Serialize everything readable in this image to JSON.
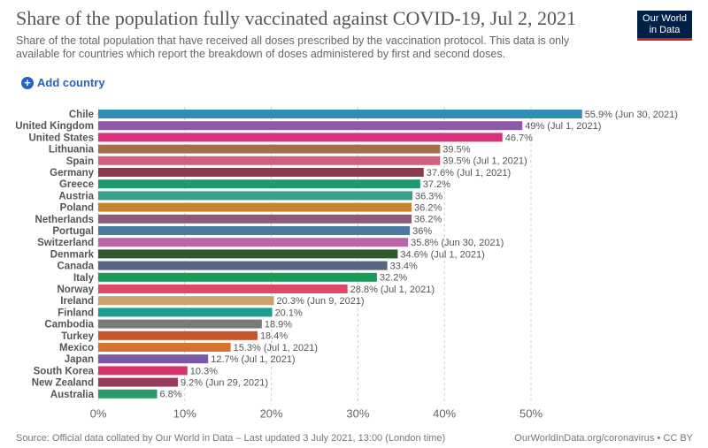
{
  "header": {
    "title": "Share of the population fully vaccinated against COVID-19, Jul 2, 2021",
    "subtitle": "Share of the total population that have received all doses prescribed by the vaccination protocol. This data is only available for countries which report the breakdown of doses administered by first and second doses.",
    "logo": [
      "Our World",
      "in Data"
    ],
    "button": "Add country"
  },
  "chart_data": {
    "type": "hbar",
    "categories": [
      "Chile",
      "United Kingdom",
      "United States",
      "Lithuania",
      "Spain",
      "Germany",
      "Greece",
      "Austria",
      "Poland",
      "Netherlands",
      "Portugal",
      "Switzerland",
      "Denmark",
      "Canada",
      "Italy",
      "Norway",
      "Ireland",
      "Finland",
      "Cambodia",
      "Turkey",
      "Mexico",
      "Japan",
      "South Korea",
      "New Zealand",
      "Australia"
    ],
    "values": [
      55.9,
      49,
      46.7,
      39.5,
      39.5,
      37.6,
      37.2,
      36.3,
      36.2,
      36.2,
      36,
      35.8,
      34.6,
      33.4,
      32.2,
      28.8,
      20.3,
      20.1,
      18.9,
      18.4,
      15.3,
      12.7,
      10.3,
      9.2,
      6.8
    ],
    "value_labels": [
      "55.9% (Jun 30, 2021)",
      "49% (Jul 1, 2021)",
      "46.7%",
      "39.5%",
      "39.5% (Jul 1, 2021)",
      "37.6% (Jul 1, 2021)",
      "37.2%",
      "36.3%",
      "36.2%",
      "36.2%",
      "36%",
      "35.8% (Jun 30, 2021)",
      "34.6% (Jul 1, 2021)",
      "33.4%",
      "32.2%",
      "28.8% (Jul 1, 2021)",
      "20.3% (Jun 9, 2021)",
      "20.1%",
      "18.9%",
      "18.4%",
      "15.3% (Jul 1, 2021)",
      "12.7% (Jul 1, 2021)",
      "10.3%",
      "9.2% (Jun 29, 2021)",
      "6.8%"
    ],
    "colors": [
      "#2f8fb2",
      "#8e5aa8",
      "#d6337a",
      "#a0704f",
      "#d06080",
      "#8d3a4e",
      "#1d9a6c",
      "#3aa089",
      "#c8832b",
      "#8e5a7a",
      "#4c7a9e",
      "#b866a8",
      "#2e5b2e",
      "#576580",
      "#1b9a5a",
      "#e0486a",
      "#c9a36e",
      "#1b9e8e",
      "#7a7a7a",
      "#c4552c",
      "#d4742e",
      "#7a5aa8",
      "#d8336a",
      "#9a3a5a",
      "#2a9a6a"
    ],
    "xlim": [
      0,
      57
    ],
    "xticks": [
      {
        "value": 0,
        "label": "0%"
      },
      {
        "value": 10,
        "label": "10%"
      },
      {
        "value": 20,
        "label": "20%"
      },
      {
        "value": 30,
        "label": "30%"
      },
      {
        "value": 40,
        "label": "40%"
      },
      {
        "value": 50,
        "label": "50%"
      }
    ],
    "grid": true,
    "source": "Source: Official data collated by Our World in Data – Last updated 3 July 2021, 13:00 (London time)",
    "credit": "OurWorldInData.org/coronavirus • CC BY"
  }
}
